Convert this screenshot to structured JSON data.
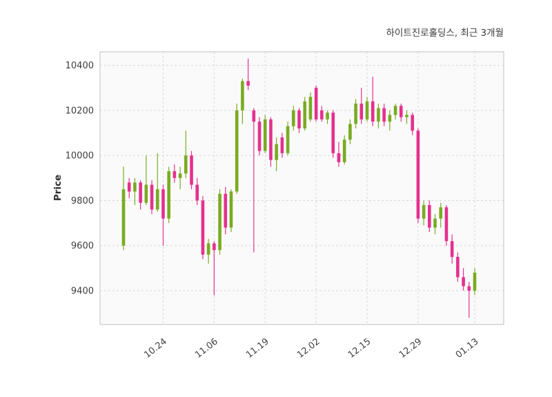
{
  "header": {
    "title": "하이트진로홀딩스, 최근 3개월"
  },
  "chart_data": {
    "type": "candlestick",
    "title": "하이트진로홀딩스, 최근 3개월",
    "ylabel": "Price",
    "xlabel": "",
    "ylim": [
      9250,
      10460
    ],
    "grid": true,
    "grid_style": "dashed",
    "legend": "none",
    "y_ticks": [
      9400,
      9600,
      9800,
      10000,
      10200,
      10400
    ],
    "x_tick_labels": [
      "10.24",
      "11.06",
      "11.19",
      "12.02",
      "12.15",
      "12.29",
      "01.13"
    ],
    "x_tick_indices": [
      7,
      16,
      25,
      34,
      43,
      52,
      62
    ],
    "colors": {
      "up": "#79ab22",
      "down": "#e5308e",
      "grid": "#d7d7d7",
      "axis_text": "#3d3d3d",
      "plot_bg": "#fafafa",
      "figure_bg": "#ffffff",
      "border": "#cccccc"
    },
    "candle_format": [
      "open",
      "high",
      "low",
      "close"
    ],
    "candles": [
      [
        9600,
        9950,
        9580,
        9850
      ],
      [
        9880,
        9900,
        9810,
        9840
      ],
      [
        9840,
        9900,
        9780,
        9880
      ],
      [
        9880,
        9890,
        9760,
        9790
      ],
      [
        9790,
        10000,
        9780,
        9870
      ],
      [
        9870,
        9890,
        9740,
        9760
      ],
      [
        9760,
        10010,
        9750,
        9850
      ],
      [
        9850,
        9870,
        9600,
        9720
      ],
      [
        9720,
        9950,
        9700,
        9930
      ],
      [
        9930,
        9960,
        9880,
        9900
      ],
      [
        9900,
        9950,
        9850,
        9920
      ],
      [
        9920,
        10110,
        9900,
        10000
      ],
      [
        10000,
        10020,
        9850,
        9870
      ],
      [
        9870,
        9900,
        9780,
        9800
      ],
      [
        9800,
        9820,
        9540,
        9560
      ],
      [
        9560,
        9630,
        9520,
        9610
      ],
      [
        9610,
        9620,
        9380,
        9580
      ],
      [
        9580,
        9850,
        9560,
        9830
      ],
      [
        9830,
        9860,
        9650,
        9680
      ],
      [
        9680,
        9850,
        9660,
        9840
      ],
      [
        9840,
        10230,
        9830,
        10200
      ],
      [
        10200,
        10340,
        10140,
        10330
      ],
      [
        10330,
        10430,
        10290,
        10310
      ],
      [
        10200,
        10210,
        9570,
        10150
      ],
      [
        10150,
        10170,
        10000,
        10020
      ],
      [
        10020,
        10180,
        10010,
        10160
      ],
      [
        10160,
        10170,
        9950,
        9980
      ],
      [
        9980,
        10080,
        9930,
        10050
      ],
      [
        10080,
        10100,
        9990,
        10010
      ],
      [
        10010,
        10150,
        10000,
        10130
      ],
      [
        10130,
        10220,
        10110,
        10200
      ],
      [
        10200,
        10210,
        10100,
        10120
      ],
      [
        10120,
        10260,
        10110,
        10240
      ],
      [
        10160,
        10280,
        10150,
        10260
      ],
      [
        10300,
        10310,
        10150,
        10160
      ],
      [
        10200,
        10220,
        10150,
        10160
      ],
      [
        10160,
        10200,
        10140,
        10190
      ],
      [
        10190,
        10200,
        9990,
        10010
      ],
      [
        10010,
        10060,
        9950,
        9970
      ],
      [
        9970,
        10090,
        9960,
        10070
      ],
      [
        10070,
        10160,
        10050,
        10140
      ],
      [
        10140,
        10250,
        10120,
        10230
      ],
      [
        10230,
        10300,
        10140,
        10160
      ],
      [
        10160,
        10260,
        10150,
        10240
      ],
      [
        10240,
        10350,
        10130,
        10150
      ],
      [
        10150,
        10230,
        10120,
        10210
      ],
      [
        10210,
        10230,
        10130,
        10150
      ],
      [
        10150,
        10200,
        10110,
        10180
      ],
      [
        10180,
        10230,
        10160,
        10220
      ],
      [
        10220,
        10230,
        10150,
        10170
      ],
      [
        10170,
        10200,
        10140,
        10180
      ],
      [
        10180,
        10190,
        10090,
        10110
      ],
      [
        10110,
        10120,
        9700,
        9720
      ],
      [
        9720,
        9800,
        9690,
        9780
      ],
      [
        9780,
        9800,
        9660,
        9680
      ],
      [
        9680,
        9740,
        9650,
        9720
      ],
      [
        9720,
        9790,
        9680,
        9770
      ],
      [
        9770,
        9780,
        9600,
        9620
      ],
      [
        9620,
        9650,
        9520,
        9550
      ],
      [
        9550,
        9570,
        9440,
        9460
      ],
      [
        9460,
        9500,
        9400,
        9420
      ],
      [
        9420,
        9440,
        9280,
        9400
      ],
      [
        9400,
        9500,
        9380,
        9480
      ]
    ]
  }
}
